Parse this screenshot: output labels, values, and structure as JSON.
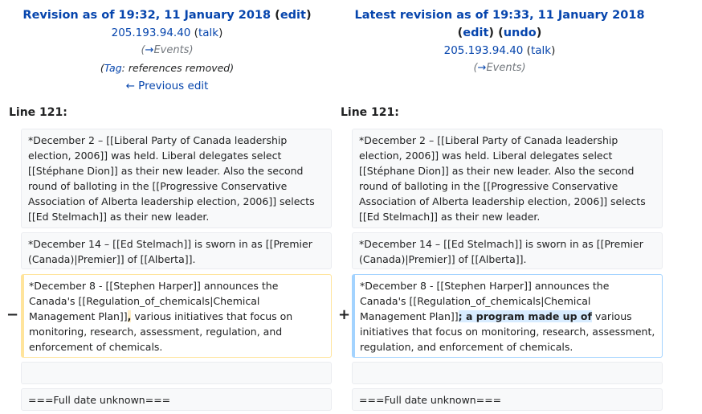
{
  "left_header": {
    "title_prefix": "Revision as of 19:32, 11 January 2018",
    "paren_open": " (",
    "edit_label": "edit",
    "paren_close": ")",
    "user_ip": "205.193.94.40",
    "talk_label": "talk",
    "summary_arrow": "→",
    "summary_text": "Events",
    "tag_label": "Tag",
    "tag_text": ": references removed",
    "previous_edit": "← Previous edit"
  },
  "right_header": {
    "title": "Latest revision as of 19:33, 11 January 2018",
    "edit_label": "edit",
    "undo_label": "undo",
    "user_ip": "205.193.94.40",
    "talk_label": "talk",
    "summary_arrow": "→",
    "summary_text": "Events"
  },
  "diff": {
    "line_left": "Line 121:",
    "line_right": "Line 121:",
    "context1": "*December 2 – [[Liberal Party of Canada leadership election, 2006]] was held.  Liberal delegates select [[Stéphane Dion]] as their new leader.  Also the second round of balloting in the [[Progressive Conservative Association of Alberta leadership election, 2006]] selects [[Ed Stelmach]] as their new leader.",
    "context2": "*December 14 – [[Ed Stelmach]] is sworn in as [[Premier (Canada)|Premier]] of [[Alberta]].",
    "deleted_before": "*December 8 - [[Stephen Harper]] announces the Canada's [[Regulation_of_chemicals|Chemical Management Plan]]",
    "deleted_highlight": ",",
    "deleted_after": " various initiatives that focus on monitoring, research, assessment, regulation, and enforcement of chemicals.",
    "added_before": "*December 8 - [[Stephen Harper]] announces the Canada's [[Regulation_of_chemicals|Chemical Management Plan]]",
    "added_highlight": "; a program made up of",
    "added_after": " various initiatives that focus on monitoring, research, assessment, regulation, and enforcement of chemicals.",
    "minus_marker": "−",
    "plus_marker": "+",
    "context4": "===Full date unknown==="
  }
}
